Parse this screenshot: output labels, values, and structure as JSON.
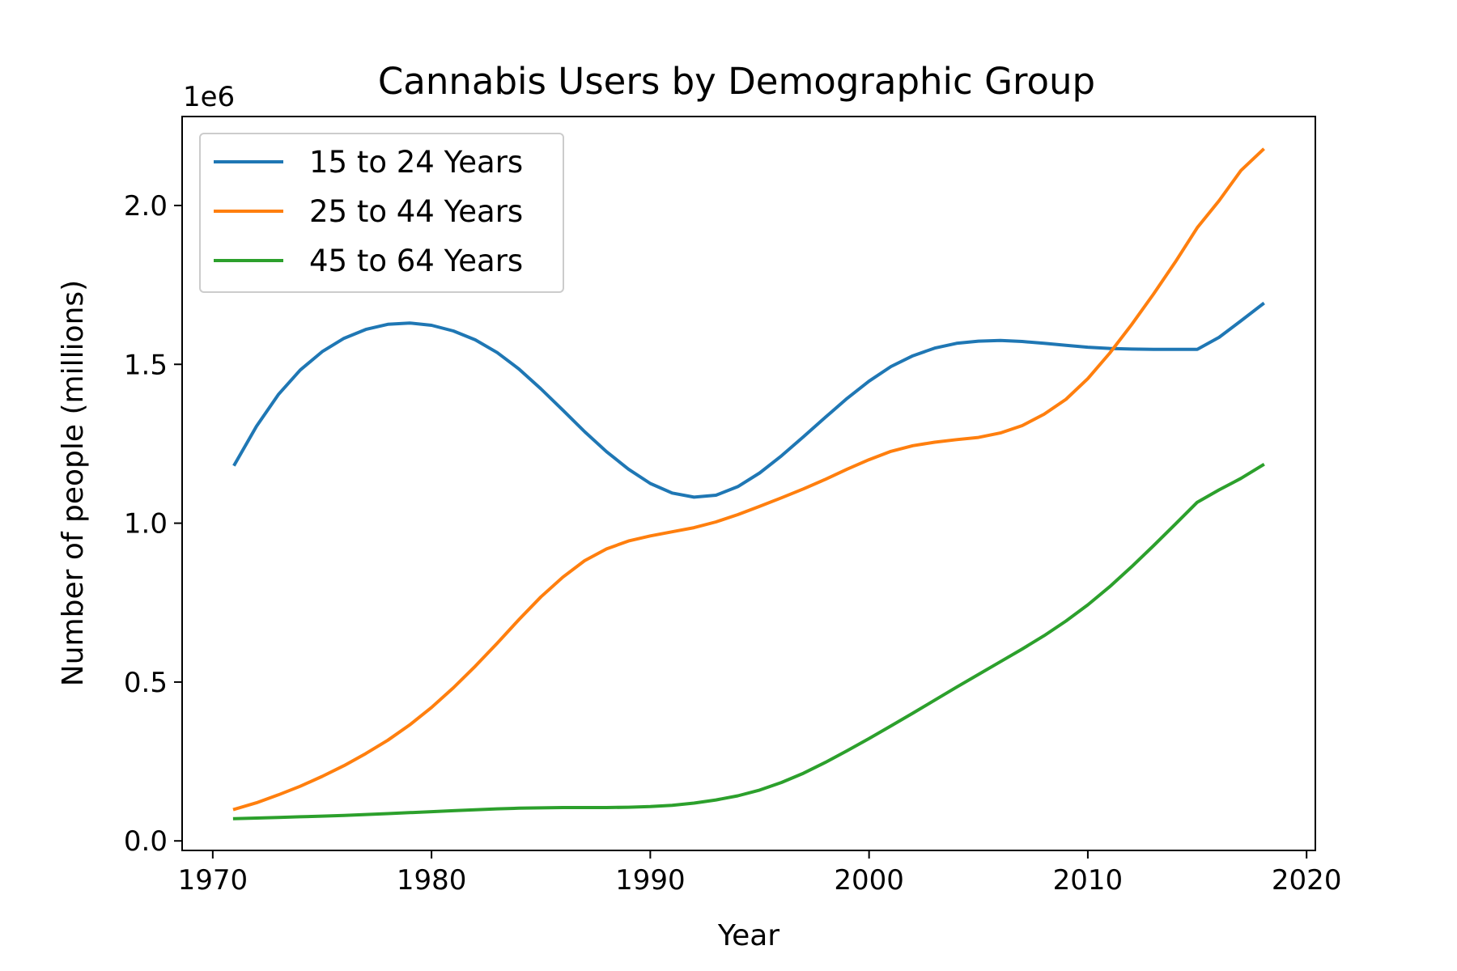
{
  "chart_data": {
    "type": "line",
    "title": "Cannabis Users by Demographic Group",
    "xlabel": "Year",
    "ylabel": "Number of people (millions)",
    "y_offset_label": "1e6",
    "xlim": [
      1968.6,
      2020.4
    ],
    "ylim": [
      -30000,
      2280000
    ],
    "x_ticks": [
      1970,
      1980,
      1990,
      2000,
      2010,
      2020
    ],
    "x_tick_labels": [
      "1970",
      "1980",
      "1990",
      "2000",
      "2010",
      "2020"
    ],
    "y_ticks": [
      0,
      500000,
      1000000,
      1500000,
      2000000
    ],
    "y_tick_labels": [
      "0.0",
      "0.5",
      "1.0",
      "1.5",
      "2.0"
    ],
    "grid": false,
    "legend_position": "upper-left",
    "x": [
      1971,
      1972,
      1973,
      1974,
      1975,
      1976,
      1977,
      1978,
      1979,
      1980,
      1981,
      1982,
      1983,
      1984,
      1985,
      1986,
      1987,
      1988,
      1989,
      1990,
      1991,
      1992,
      1993,
      1994,
      1995,
      1996,
      1997,
      1998,
      1999,
      2000,
      2001,
      2002,
      2003,
      2004,
      2005,
      2006,
      2007,
      2008,
      2009,
      2010,
      2011,
      2012,
      2013,
      2014,
      2015,
      2016,
      2017,
      2018
    ],
    "series": [
      {
        "name": "15 to 24 Years",
        "color": "#1f77b4",
        "values": [
          1185000,
          1305000,
          1405000,
          1482000,
          1540000,
          1582000,
          1610000,
          1626000,
          1630000,
          1623000,
          1605000,
          1577000,
          1537000,
          1485000,
          1423000,
          1356000,
          1288000,
          1225000,
          1170000,
          1125000,
          1095000,
          1082000,
          1088000,
          1115000,
          1158000,
          1212000,
          1272000,
          1333000,
          1393000,
          1447000,
          1493000,
          1527000,
          1551000,
          1566000,
          1573000,
          1575000,
          1572000,
          1566000,
          1560000,
          1554000,
          1550000,
          1548000,
          1547000,
          1547000,
          1547000,
          1585000,
          1637000,
          1690000
        ]
      },
      {
        "name": "25 to 44 Years",
        "color": "#ff7f0e",
        "values": [
          100000,
          120000,
          145000,
          172000,
          203000,
          237000,
          275000,
          317000,
          365000,
          420000,
          482000,
          550000,
          622000,
          697000,
          768000,
          830000,
          882000,
          919000,
          944000,
          960000,
          973000,
          986000,
          1004000,
          1027000,
          1053000,
          1080000,
          1108000,
          1138000,
          1170000,
          1200000,
          1226000,
          1244000,
          1255000,
          1263000,
          1270000,
          1284000,
          1307000,
          1343000,
          1390000,
          1455000,
          1535000,
          1625000,
          1721000,
          1822000,
          1930000,
          2015000,
          2110000,
          2175000
        ]
      },
      {
        "name": "45 to 64 Years",
        "color": "#2ca02c",
        "values": [
          70000,
          72000,
          74000,
          76000,
          78000,
          80000,
          83000,
          86000,
          89000,
          92000,
          95000,
          98000,
          101000,
          103000,
          104000,
          105000,
          105000,
          105000,
          106000,
          108000,
          112000,
          119000,
          129000,
          142000,
          160000,
          184000,
          213000,
          247000,
          284000,
          322000,
          362000,
          402000,
          443000,
          484000,
          524000,
          564000,
          604000,
          646000,
          692000,
          743000,
          800000,
          863000,
          929000,
          997000,
          1066000,
          1105000,
          1141000,
          1183000
        ]
      }
    ]
  }
}
